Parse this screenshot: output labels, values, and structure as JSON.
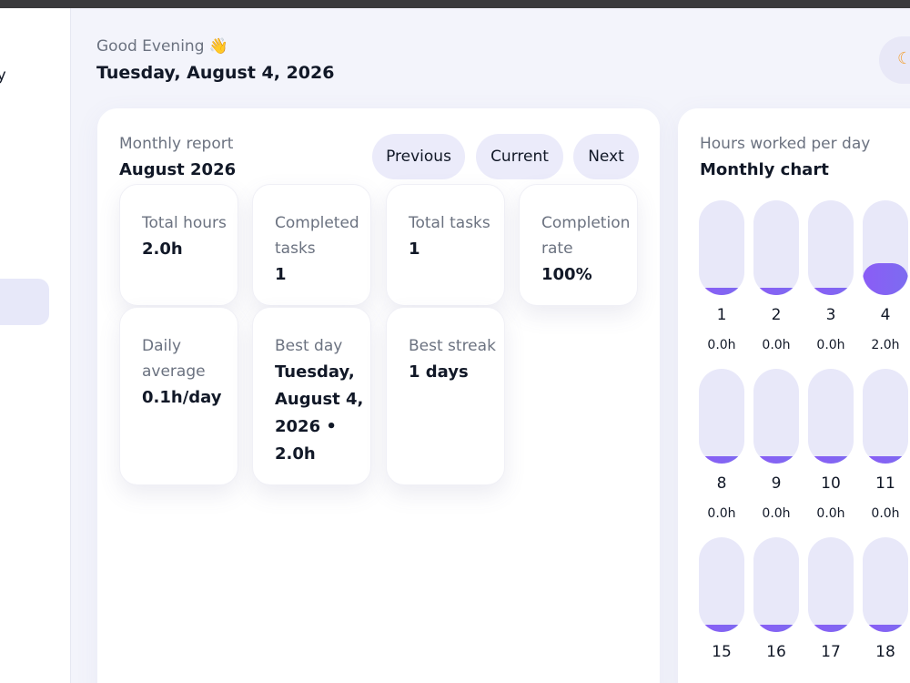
{
  "sidebar": {
    "partial_label": "ty"
  },
  "header": {
    "greeting": "Good Evening",
    "greeting_emoji": "👋",
    "date": "Tuesday, August 4, 2026",
    "theme_icon": "moon-icon"
  },
  "report": {
    "subtitle": "Monthly report",
    "title": "August 2026",
    "buttons": {
      "previous": "Previous",
      "current": "Current",
      "next": "Next"
    },
    "stats": [
      {
        "label": "Total hours",
        "value": "2.0h"
      },
      {
        "label": "Completed tasks",
        "value": "1"
      },
      {
        "label": "Total tasks",
        "value": "1"
      },
      {
        "label": "Completion rate",
        "value": "100%"
      },
      {
        "label": "Daily average",
        "value": "0.1h/day"
      },
      {
        "label": "Best day",
        "value": "Tuesday, August 4, 2026 • 2.0h"
      },
      {
        "label": "Best streak",
        "value": "1 days"
      }
    ]
  },
  "chart": {
    "subtitle": "Hours worked per day",
    "title": "Monthly chart",
    "accent_color": "#8b5cf6",
    "track_color": "#e8e8f9"
  },
  "chart_data": {
    "type": "bar",
    "categories": [
      "1",
      "2",
      "3",
      "4",
      "8",
      "9",
      "10",
      "11",
      "15",
      "16",
      "17",
      "18"
    ],
    "values": [
      0.0,
      0.0,
      0.0,
      2.0,
      0.0,
      0.0,
      0.0,
      0.0,
      0.0,
      0.0,
      0.0,
      0.0
    ],
    "value_labels": [
      "0.0h",
      "0.0h",
      "0.0h",
      "2.0h",
      "0.0h",
      "0.0h",
      "0.0h",
      "0.0h",
      "",
      "",
      "",
      ""
    ],
    "ylim": [
      0,
      6
    ]
  }
}
